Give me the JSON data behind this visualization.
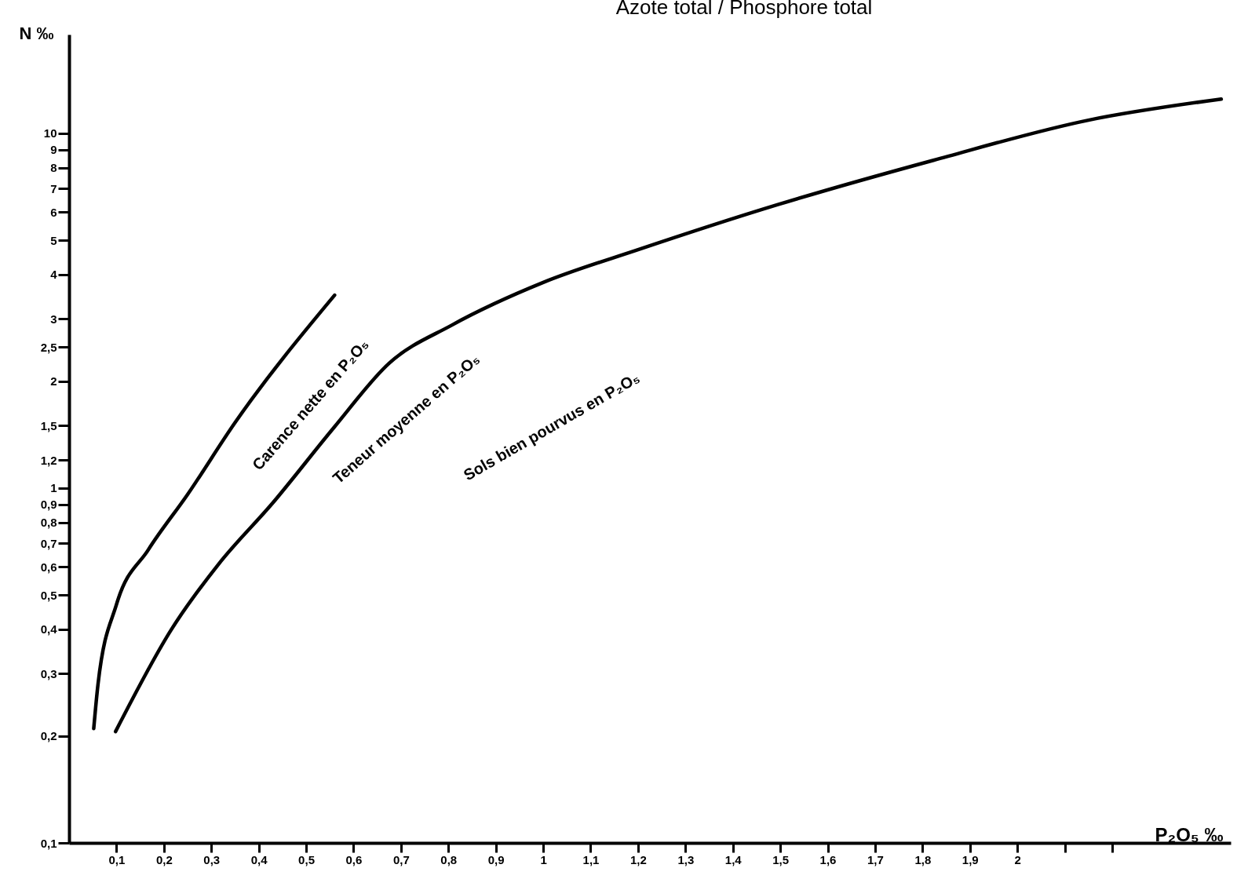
{
  "chart_data": {
    "type": "line",
    "title": "Azote total / Phosphore total",
    "xlabel": "P₂O₅ ‰",
    "ylabel": "N ‰",
    "log": "y",
    "grid": false,
    "marker": "none",
    "line_style": "solid",
    "xlim": [
      0,
      2.45
    ],
    "ylim": [
      0.1,
      19
    ],
    "xticks": [
      {
        "value": 0.1,
        "label": "0,1"
      },
      {
        "value": 0.2,
        "label": "0,2"
      },
      {
        "value": 0.3,
        "label": "0,3"
      },
      {
        "value": 0.4,
        "label": "0,4"
      },
      {
        "value": 0.5,
        "label": "0,5"
      },
      {
        "value": 0.6,
        "label": "0,6"
      },
      {
        "value": 0.7,
        "label": "0,7"
      },
      {
        "value": 0.8,
        "label": "0,8"
      },
      {
        "value": 0.9,
        "label": "0,9"
      },
      1,
      {
        "value": 1.1,
        "label": "1,1"
      },
      {
        "value": 1.2,
        "label": "1,2"
      },
      {
        "value": 1.3,
        "label": "1,3"
      },
      {
        "value": 1.4,
        "label": "1,4"
      },
      {
        "value": 1.5,
        "label": "1,5"
      },
      {
        "value": 1.6,
        "label": "1,6"
      },
      {
        "value": 1.7,
        "label": "1,7"
      },
      {
        "value": 1.8,
        "label": "1,8"
      },
      {
        "value": 1.9,
        "label": "1,9"
      },
      2,
      {
        "value": 2.1,
        "label": null
      },
      {
        "value": 2.2,
        "label": null
      }
    ],
    "yticks": [
      {
        "value": 0.1,
        "label": "0,1"
      },
      {
        "value": 0.2,
        "label": "0,2"
      },
      {
        "value": 0.3,
        "label": "0,3"
      },
      {
        "value": 0.4,
        "label": "0,4"
      },
      {
        "value": 0.5,
        "label": "0,5"
      },
      {
        "value": 0.6,
        "label": "0,6"
      },
      {
        "value": 0.7,
        "label": "0,7"
      },
      {
        "value": 0.8,
        "label": "0,8"
      },
      {
        "value": 0.9,
        "label": "0,9"
      },
      1,
      {
        "value": 1.2,
        "label": "1,2"
      },
      {
        "value": 1.5,
        "label": "1,5"
      },
      2,
      {
        "value": 2.5,
        "label": "2,5"
      },
      3,
      4,
      5,
      6,
      7,
      8,
      9,
      10
    ],
    "series": [
      {
        "color": "#000000",
        "x": [
          0.052,
          0.061,
          0.1,
          0.167,
          0.25,
          0.35,
          0.56
        ],
        "values": [
          0.21,
          0.28,
          0.47,
          0.67,
          0.96,
          1.53,
          3.5
        ]
      },
      {
        "color": "#000000",
        "x": [
          0.098,
          0.216,
          0.315,
          0.43,
          0.56,
          0.675,
          0.807,
          1.0,
          1.2,
          1.495,
          1.823,
          2.15,
          2.43
        ],
        "values": [
          0.206,
          0.4,
          0.61,
          0.91,
          1.49,
          2.25,
          2.88,
          3.8,
          4.7,
          6.3,
          8.4,
          10.9,
          12.5
        ]
      }
    ],
    "annotations": [
      "Carence nette en P₂O₅",
      "Teneur moyenne en P₂O₅",
      "Sols bien pourvus en P₂O₅"
    ]
  }
}
